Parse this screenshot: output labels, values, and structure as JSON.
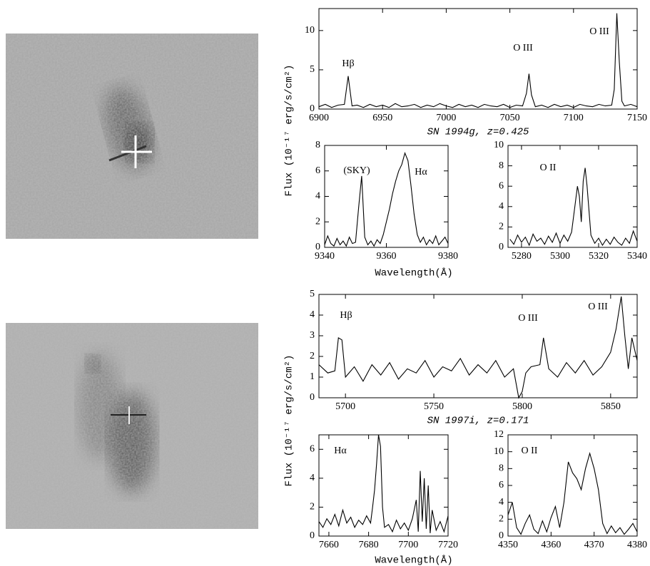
{
  "ylabels": [
    "Flux (10⁻¹⁷ erg/s/cm²)",
    "Flux (10⁻¹⁷ erg/s/cm²)"
  ],
  "xlabels": [
    "Wavelength(Å)",
    "Wavelength(Å)"
  ],
  "chart_data": [
    {
      "type": "line",
      "color": "#000000",
      "xlabel": "SN 1994g, z=0.425",
      "annotations": [
        "Hβ",
        "O III",
        "O III"
      ],
      "xlim": [
        6900,
        7150
      ],
      "xticks": [
        6900,
        6950,
        7000,
        7050,
        7100,
        7150
      ],
      "ylim": [
        0,
        12.8
      ],
      "yticks": [
        0,
        5,
        10
      ],
      "x": [
        6900,
        6905,
        6910,
        6915,
        6920,
        6923,
        6926,
        6930,
        6935,
        6940,
        6945,
        6950,
        6955,
        6960,
        6965,
        6970,
        6975,
        6980,
        6985,
        6990,
        6995,
        7000,
        7005,
        7010,
        7015,
        7020,
        7025,
        7030,
        7035,
        7040,
        7045,
        7050,
        7055,
        7060,
        7063,
        7065,
        7067,
        7070,
        7075,
        7080,
        7085,
        7090,
        7095,
        7100,
        7105,
        7110,
        7115,
        7120,
        7125,
        7130,
        7132,
        7134,
        7136,
        7138,
        7140,
        7145,
        7150
      ],
      "values": [
        0.3,
        0.6,
        0.2,
        0.5,
        0.6,
        4.2,
        0.4,
        0.5,
        0.2,
        0.6,
        0.3,
        0.5,
        0.2,
        0.7,
        0.3,
        0.4,
        0.6,
        0.2,
        0.5,
        0.3,
        0.7,
        0.4,
        0.2,
        0.6,
        0.3,
        0.5,
        0.2,
        0.6,
        0.4,
        0.3,
        0.6,
        0.2,
        0.5,
        0.4,
        2.0,
        4.5,
        1.8,
        0.3,
        0.5,
        0.2,
        0.6,
        0.3,
        0.5,
        0.2,
        0.6,
        0.4,
        0.3,
        0.6,
        0.4,
        0.5,
        2.5,
        12.2,
        6.0,
        1.0,
        0.4,
        0.6,
        0.3
      ]
    },
    {
      "type": "line",
      "color": "#000000",
      "annotations": [
        "(SKY)",
        "Hα"
      ],
      "xlim": [
        9340,
        9380
      ],
      "xticks": [
        9340,
        9360,
        9380
      ],
      "ylim": [
        0,
        8
      ],
      "yticks": [
        0,
        2,
        4,
        6,
        8
      ],
      "x": [
        9340,
        9341,
        9342,
        9343,
        9344,
        9345,
        9346,
        9347,
        9348,
        9349,
        9350,
        9351,
        9352,
        9353,
        9354,
        9355,
        9356,
        9357,
        9358,
        9359,
        9360,
        9361,
        9362,
        9363,
        9364,
        9365,
        9366,
        9367,
        9368,
        9369,
        9370,
        9371,
        9372,
        9373,
        9374,
        9375,
        9376,
        9377,
        9378,
        9379,
        9380
      ],
      "values": [
        0.2,
        0.9,
        0.3,
        0.1,
        0.7,
        0.2,
        0.5,
        0.1,
        0.8,
        0.3,
        0.4,
        3.1,
        5.6,
        0.8,
        0.2,
        0.5,
        0.1,
        0.6,
        0.3,
        1.0,
        2.0,
        3.0,
        4.2,
        5.2,
        6.0,
        6.5,
        7.4,
        6.8,
        4.8,
        2.6,
        1.0,
        0.4,
        0.8,
        0.2,
        0.6,
        0.3,
        0.9,
        0.2,
        0.5,
        0.8,
        0.3
      ]
    },
    {
      "type": "line",
      "color": "#000000",
      "annotations": [
        "O II"
      ],
      "xlim": [
        5273,
        5340
      ],
      "xticks": [
        5280,
        5300,
        5320,
        5340
      ],
      "ylim": [
        0,
        10
      ],
      "yticks": [
        0,
        2,
        4,
        6,
        8,
        10
      ],
      "x": [
        5274,
        5276,
        5278,
        5280,
        5282,
        5284,
        5286,
        5288,
        5290,
        5292,
        5294,
        5296,
        5298,
        5300,
        5302,
        5304,
        5306,
        5308,
        5309,
        5310,
        5311,
        5312,
        5313,
        5314,
        5316,
        5318,
        5320,
        5322,
        5324,
        5326,
        5328,
        5330,
        5332,
        5334,
        5336,
        5338,
        5340
      ],
      "values": [
        0.8,
        0.3,
        1.2,
        0.5,
        1.0,
        0.2,
        1.3,
        0.6,
        0.9,
        0.3,
        1.1,
        0.5,
        1.4,
        0.4,
        1.2,
        0.6,
        1.5,
        4.5,
        6.0,
        5.0,
        2.5,
        6.5,
        7.8,
        6.0,
        1.2,
        0.4,
        0.9,
        0.2,
        0.8,
        0.3,
        1.0,
        0.5,
        0.2,
        0.9,
        0.4,
        1.6,
        0.6
      ]
    },
    {
      "type": "line",
      "color": "#000000",
      "xlabel": "SN 1997i, z=0.171",
      "annotations": [
        "Hβ",
        "O III",
        "O III"
      ],
      "xlim": [
        5685,
        5865
      ],
      "xticks": [
        5700,
        5750,
        5800,
        5850
      ],
      "ylim": [
        0,
        5
      ],
      "yticks": [
        0,
        1,
        2,
        3,
        4,
        5
      ],
      "x": [
        5685,
        5690,
        5694,
        5696,
        5698,
        5700,
        5705,
        5710,
        5715,
        5720,
        5725,
        5730,
        5735,
        5740,
        5745,
        5750,
        5755,
        5760,
        5765,
        5770,
        5775,
        5780,
        5785,
        5790,
        5795,
        5798,
        5800,
        5802,
        5805,
        5810,
        5812,
        5815,
        5820,
        5825,
        5830,
        5835,
        5840,
        5845,
        5850,
        5853,
        5856,
        5858,
        5860,
        5862,
        5865
      ],
      "values": [
        1.6,
        1.2,
        1.3,
        2.9,
        2.8,
        1.0,
        1.5,
        0.8,
        1.6,
        1.1,
        1.7,
        0.9,
        1.4,
        1.2,
        1.8,
        1.0,
        1.5,
        1.3,
        1.9,
        1.1,
        1.6,
        1.2,
        1.8,
        1.0,
        1.4,
        0.0,
        0.3,
        1.2,
        1.5,
        1.6,
        2.9,
        1.4,
        1.0,
        1.7,
        1.2,
        1.8,
        1.1,
        1.5,
        2.2,
        3.3,
        4.9,
        3.0,
        1.4,
        2.9,
        1.8
      ]
    },
    {
      "type": "line",
      "color": "#000000",
      "annotations": [
        "Hα"
      ],
      "xlim": [
        7655,
        7720
      ],
      "xticks": [
        7660,
        7680,
        7700,
        7720
      ],
      "ylim": [
        0,
        7
      ],
      "yticks": [
        0,
        2,
        4,
        6
      ],
      "x": [
        7655,
        7657,
        7659,
        7661,
        7663,
        7665,
        7667,
        7669,
        7671,
        7673,
        7675,
        7677,
        7679,
        7681,
        7682,
        7683,
        7684,
        7685,
        7686,
        7687,
        7688,
        7690,
        7692,
        7694,
        7696,
        7698,
        7700,
        7702,
        7704,
        7705,
        7706,
        7707,
        7708,
        7709,
        7710,
        7711,
        7712,
        7714,
        7716,
        7718,
        7720
      ],
      "values": [
        1.0,
        0.6,
        1.2,
        0.8,
        1.5,
        0.7,
        1.8,
        0.9,
        1.3,
        0.6,
        1.1,
        0.8,
        1.4,
        0.9,
        2.0,
        3.2,
        5.0,
        7.0,
        6.2,
        2.0,
        0.6,
        0.8,
        0.3,
        1.1,
        0.5,
        0.9,
        0.4,
        1.2,
        2.5,
        0.3,
        4.5,
        1.0,
        4.0,
        0.5,
        3.5,
        0.2,
        1.8,
        0.4,
        1.0,
        0.3,
        1.4
      ]
    },
    {
      "type": "line",
      "color": "#000000",
      "annotations": [
        "O II"
      ],
      "xlim": [
        4350,
        4380
      ],
      "xticks": [
        4350,
        4360,
        4370,
        4380
      ],
      "ylim": [
        0,
        12
      ],
      "yticks": [
        0,
        2,
        4,
        6,
        8,
        10,
        12
      ],
      "x": [
        4350,
        4351,
        4352,
        4353,
        4354,
        4355,
        4356,
        4357,
        4358,
        4359,
        4360,
        4361,
        4362,
        4363,
        4364,
        4365,
        4366,
        4367,
        4368,
        4369,
        4370,
        4371,
        4372,
        4373,
        4374,
        4375,
        4376,
        4377,
        4378,
        4379,
        4380
      ],
      "values": [
        2.5,
        4.0,
        1.0,
        0.2,
        1.5,
        2.5,
        0.8,
        0.3,
        1.8,
        0.5,
        2.2,
        3.5,
        1.0,
        4.0,
        8.8,
        7.5,
        6.8,
        5.5,
        8.0,
        9.8,
        8.0,
        5.5,
        1.5,
        0.3,
        1.2,
        0.4,
        1.0,
        0.2,
        0.8,
        1.5,
        0.5
      ]
    }
  ]
}
